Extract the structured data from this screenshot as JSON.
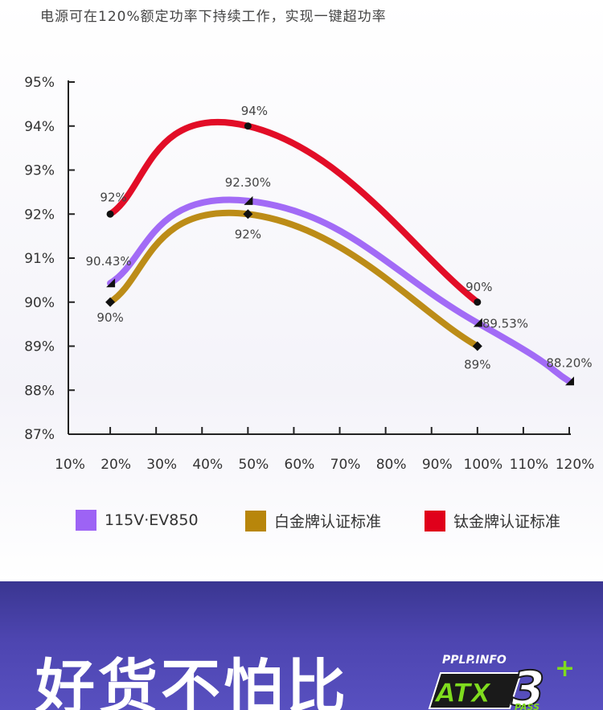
{
  "subtitle": "电源可在120%额定功率下持续工作，实现一键超功率",
  "chart_data": {
    "type": "line",
    "x": [
      "10%",
      "20%",
      "30%",
      "40%",
      "50%",
      "60%",
      "70%",
      "80%",
      "90%",
      "100%",
      "110%",
      "120%"
    ],
    "xlabel": "",
    "ylabel": "",
    "y_ticks": [
      "87%",
      "88%",
      "89%",
      "90%",
      "91%",
      "92%",
      "93%",
      "94%",
      "95%"
    ],
    "ylim": [
      87,
      95
    ],
    "grid": false,
    "legend_position": "bottom",
    "series": [
      {
        "name": "115V·EV850",
        "color": "#9d63f5",
        "marker": "triangle",
        "points": [
          {
            "x": 20,
            "y": 90.43,
            "label": "90.43%"
          },
          {
            "x": 50,
            "y": 92.3,
            "label": "92.30%"
          },
          {
            "x": 100,
            "y": 89.53,
            "label": "89.53%"
          },
          {
            "x": 120,
            "y": 88.2,
            "label": "88.20%"
          }
        ]
      },
      {
        "name": "白金牌认证标准",
        "color": "#b8860b",
        "marker": "diamond",
        "points": [
          {
            "x": 20,
            "y": 90,
            "label": "90%"
          },
          {
            "x": 50,
            "y": 92,
            "label": "92%"
          },
          {
            "x": 100,
            "y": 89,
            "label": "89%"
          }
        ]
      },
      {
        "name": "钛金牌认证标准",
        "color": "#e0001b",
        "marker": "circle",
        "points": [
          {
            "x": 20,
            "y": 92,
            "label": "92%"
          },
          {
            "x": 50,
            "y": 94,
            "label": "94%"
          },
          {
            "x": 100,
            "y": 90,
            "label": "90%"
          }
        ]
      }
    ]
  },
  "banner": {
    "title": "好货不怕比",
    "badge_site": "PPLP.INFO",
    "badge_main": "ATX",
    "badge_number": "3",
    "badge_plus": "+",
    "badge_pass": "PASS"
  }
}
